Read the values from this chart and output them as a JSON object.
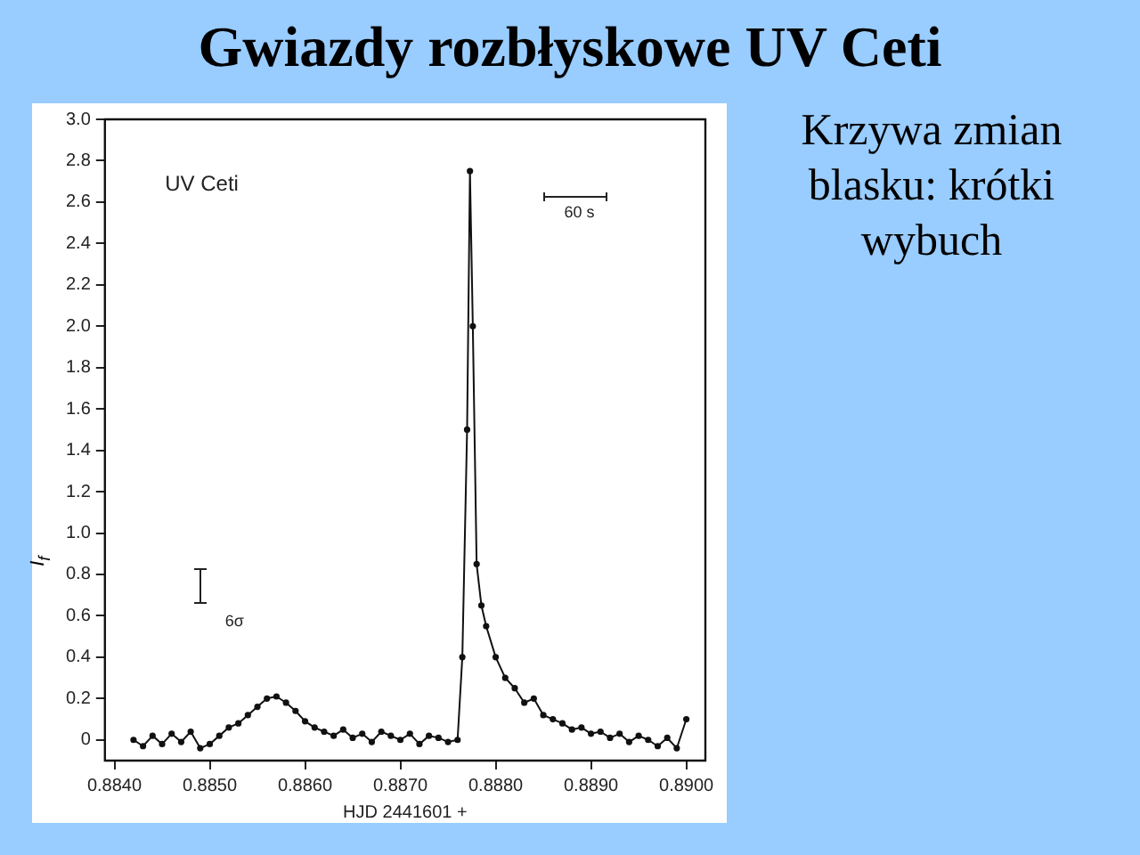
{
  "chart_data": {
    "type": "line",
    "title": "Gwiazdy rozbłyskowe UV Ceti",
    "subtitle": "Krzywa zmian blasku: krótki wybuch",
    "xlabel": "HJD 2441601 +",
    "ylabel": "I$_{f}$",
    "annotations": [
      "UV Ceti",
      "60 s",
      "6σ"
    ],
    "series": [
      {
        "color": "#111111",
        "x": [
          0.8842,
          0.8843,
          0.8844,
          0.8845,
          0.8846,
          0.8847,
          0.8848,
          0.8849,
          0.885,
          0.8851,
          0.8852,
          0.8853,
          0.8854,
          0.8855,
          0.8856,
          0.8857,
          0.8858,
          0.8859,
          0.886,
          0.8861,
          0.8862,
          0.8863,
          0.8864,
          0.8865,
          0.8866,
          0.8867,
          0.8868,
          0.8869,
          0.887,
          0.8871,
          0.8872,
          0.8873,
          0.8874,
          0.8875,
          0.8876,
          0.88765,
          0.8877,
          0.88773,
          0.88776,
          0.8878,
          0.88785,
          0.8879,
          0.888,
          0.8881,
          0.8882,
          0.8883,
          0.8884,
          0.8885,
          0.8886,
          0.8887,
          0.8888,
          0.8889,
          0.889,
          0.8891,
          0.8892,
          0.8893,
          0.8894,
          0.8895,
          0.8896,
          0.8897,
          0.8898,
          0.8899,
          0.89
        ],
        "values": [
          0,
          -0.03,
          0.02,
          -0.02,
          0.03,
          -0.01,
          0.04,
          -0.04,
          -0.02,
          0.02,
          0.06,
          0.08,
          0.12,
          0.16,
          0.2,
          0.21,
          0.18,
          0.14,
          0.09,
          0.06,
          0.04,
          0.02,
          0.05,
          0.01,
          0.03,
          -0.01,
          0.04,
          0.02,
          0,
          0.03,
          -0.02,
          0.02,
          0.01,
          -0.01,
          0,
          0.4,
          1.5,
          2.75,
          2,
          0.85,
          0.65,
          0.55,
          0.4,
          0.3,
          0.25,
          0.18,
          0.2,
          0.12,
          0.1,
          0.08,
          0.05,
          0.06,
          0.03,
          0.04,
          0.01,
          0.03,
          -0.01,
          0.02,
          0,
          -0.03,
          0.01,
          -0.04,
          0.1
        ]
      }
    ],
    "xlim": [
      0.8839,
      0.8902
    ],
    "xticks": [
      {
        "value": 0.884,
        "label": "0.8840"
      },
      {
        "value": 0.885,
        "label": "0.8850"
      },
      {
        "value": 0.886,
        "label": "0.8860"
      },
      {
        "value": 0.887,
        "label": "0.8870"
      },
      {
        "value": 0.888,
        "label": "0.8880"
      },
      {
        "value": 0.889,
        "label": "0.8890"
      },
      {
        "value": 0.89,
        "label": "0.8900"
      }
    ],
    "ylim": [
      -0.1,
      3.0
    ],
    "yticks": [
      {
        "value": 0,
        "label": "0"
      },
      0.2,
      0.4,
      0.6,
      0.8,
      {
        "value": 1,
        "label": "1.0"
      },
      1.2,
      1.4,
      1.6,
      1.8,
      {
        "value": 2,
        "label": "2.0"
      },
      2.2,
      2.4,
      2.6,
      2.8,
      {
        "value": 3,
        "label": "3.0"
      }
    ],
    "grid": false,
    "legend": false,
    "marker": "circle",
    "line_style": "solid"
  }
}
